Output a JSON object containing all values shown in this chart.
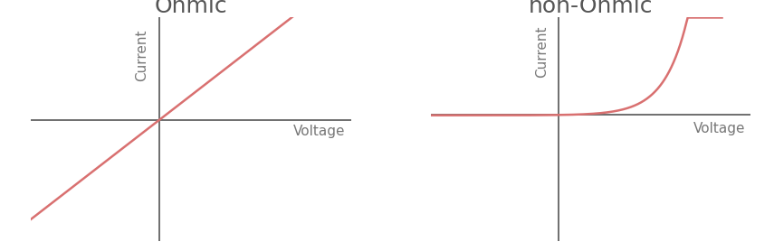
{
  "title_ohmic": "Ohmic",
  "title_nonohmic": "non-Ohmic",
  "xlabel": "Voltage",
  "ylabel": "Current",
  "line_color": "#d97070",
  "axis_color": "#555555",
  "title_color": "#555555",
  "label_color": "#777777",
  "background_color": "#ffffff",
  "title_fontsize": 18,
  "label_fontsize": 11,
  "line_width": 1.8,
  "axis_linewidth": 1.2,
  "ohmic_xlim": [
    -1.0,
    1.5
  ],
  "ohmic_ylim": [
    -1.0,
    0.85
  ],
  "nonohmic_xlim": [
    -1.0,
    1.5
  ],
  "nonohmic_ylim": [
    -1.1,
    0.85
  ],
  "diode_scale": 8.0,
  "diode_vt": 0.18
}
